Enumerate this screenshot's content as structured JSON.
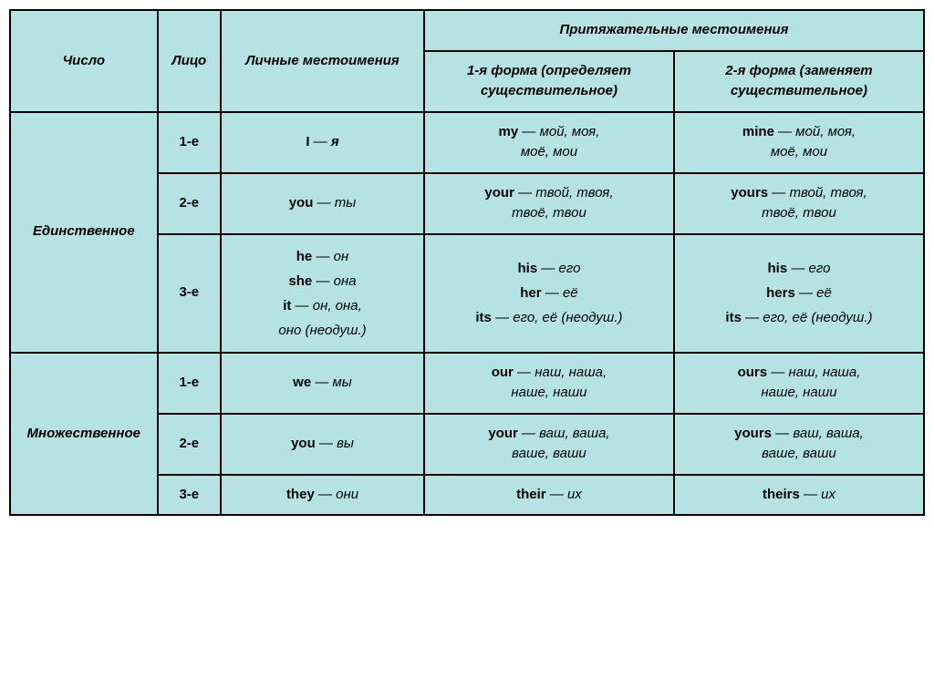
{
  "headers": {
    "number": "Число",
    "person": "Лицо",
    "personal": "Личные местоимения",
    "possessive_group": "Притяжательные местоимения",
    "form1": "1-я форма (определяет существительное)",
    "form2": "2-я форма (заменяет существительное)"
  },
  "numbers": {
    "singular": "Единственное",
    "plural": "Множественное"
  },
  "persons": {
    "p1": "1-е",
    "p2": "2-е",
    "p3": "3-е"
  },
  "rows": {
    "s1_pron_en": "I",
    "s1_pron_ru": "я",
    "s1_f1_en": "my",
    "s1_f1_ru1": "мой, моя,",
    "s1_f1_ru2": "моё, мои",
    "s1_f2_en": "mine",
    "s1_f2_ru1": "мой, моя,",
    "s1_f2_ru2": "моё, мои",
    "s2_pron_en": "you",
    "s2_pron_ru": "ты",
    "s2_f1_en": "your",
    "s2_f1_ru1": "твой, твоя,",
    "s2_f1_ru2": "твоё, твои",
    "s2_f2_en": "yours",
    "s2_f2_ru1": "твой, твоя,",
    "s2_f2_ru2": "твоё, твои",
    "s3_he_en": "he",
    "s3_he_ru": "он",
    "s3_she_en": "she",
    "s3_she_ru": "она",
    "s3_it_en": "it",
    "s3_it_ru1": "он, она,",
    "s3_it_ru2": "оно (неодуш.)",
    "s3_his_en": "his",
    "s3_his_ru": "его",
    "s3_her_en": "her",
    "s3_her_ru": "её",
    "s3_its_en": "its",
    "s3_its_ru": "его, её (неодуш.)",
    "s3_his2_en": "his",
    "s3_his2_ru": "его",
    "s3_hers_en": "hers",
    "s3_hers_ru": "её",
    "s3_its2_en": "its",
    "s3_its2_ru": "его, её (неодуш.)",
    "p1_pron_en": "we",
    "p1_pron_ru": "мы",
    "p1_f1_en": "our",
    "p1_f1_ru1": "наш, наша,",
    "p1_f1_ru2": "наше, наши",
    "p1_f2_en": "ours",
    "p1_f2_ru1": "наш, наша,",
    "p1_f2_ru2": "наше, наши",
    "p2_pron_en": "you",
    "p2_pron_ru": "вы",
    "p2_f1_en": "your",
    "p2_f1_ru1": "ваш, ваша,",
    "p2_f1_ru2": "ваше, ваши",
    "p2_f2_en": "yours",
    "p2_f2_ru1": "ваш, ваша,",
    "p2_f2_ru2": "ваше, ваши",
    "p3_pron_en": "they",
    "p3_pron_ru": "они",
    "p3_f1_en": "their",
    "p3_f1_ru": "их",
    "p3_f2_en": "theirs",
    "p3_f2_ru": "их"
  },
  "dash": " — "
}
